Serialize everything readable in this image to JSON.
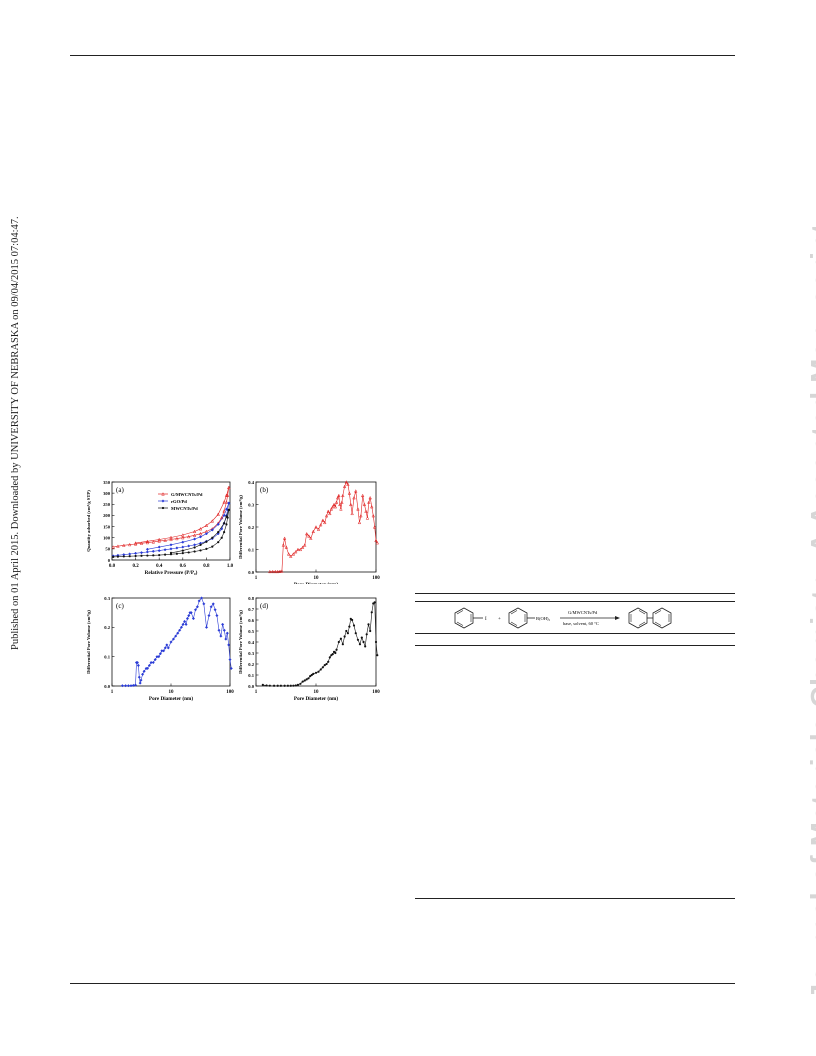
{
  "side_note": "Published on 01 April 2015. Downloaded by UNIVERSITY OF NEBRASKA on 09/04/2015 07:04:47.",
  "watermark": "Journal of Materials Chemistry A Accepted Manuscript",
  "figure": {
    "panels": [
      {
        "tag": "(a)",
        "type": "line",
        "xlabel": "Relative Pressure (P/P₀)",
        "ylabel": "Quantity adsorbed (cm³/g STP)",
        "xlim": [
          0,
          1.0
        ],
        "ylim": [
          0,
          350
        ],
        "xticks": [
          "0.0",
          "0.2",
          "0.4",
          "0.6",
          "0.8",
          "1.0"
        ],
        "yticks": [
          "0",
          "50",
          "100",
          "150",
          "200",
          "250",
          "300",
          "350"
        ],
        "legend": [
          "G/MWCNTs/Pd",
          "rGO/Pd",
          "MWCNTs/Pd"
        ],
        "colors": [
          "#e02020",
          "#2a3bd6",
          "#111111"
        ]
      },
      {
        "tag": "(b)",
        "type": "line",
        "xlabel": "Pore Diameter (nm)",
        "ylabel": "Differential Pore Volume (cm³/g)",
        "xscale": "log",
        "xlim": [
          1,
          100
        ],
        "ylim": [
          0,
          0.4
        ],
        "xticks": [
          "1",
          "10",
          "100"
        ],
        "yticks": [
          "0.0",
          "0.1",
          "0.2",
          "0.3",
          "0.4"
        ],
        "color": "#e02020"
      },
      {
        "tag": "(c)",
        "type": "line",
        "xlabel": "Pore Diameter (nm)",
        "ylabel": "Differential Pore Volume (cm³/g)",
        "xscale": "log",
        "xlim": [
          1,
          100
        ],
        "ylim": [
          0,
          0.3
        ],
        "xticks": [
          "1",
          "10",
          "100"
        ],
        "yticks": [
          "0.0",
          "0.1",
          "0.2",
          "0.3"
        ],
        "color": "#2a3bd6"
      },
      {
        "tag": "(d)",
        "type": "line",
        "xlabel": "Pore Diameter (nm)",
        "ylabel": "Differential Pore Volume (cm³/g)",
        "xscale": "log",
        "xlim": [
          1,
          100
        ],
        "ylim": [
          0,
          0.8
        ],
        "xticks": [
          "1",
          "10",
          "100"
        ],
        "yticks": [
          "0.0",
          "0.1",
          "0.2",
          "0.3",
          "0.4",
          "0.5",
          "0.6",
          "0.7",
          "0.8"
        ],
        "color": "#111111"
      }
    ]
  },
  "chart_data": [
    {
      "type": "line",
      "xlim": [
        0,
        1.0
      ],
      "ylim": [
        0,
        350
      ],
      "series": [
        {
          "name": "G/MWCNTs/Pd",
          "x": [
            0.01,
            0.05,
            0.1,
            0.15,
            0.2,
            0.25,
            0.3,
            0.35,
            0.4,
            0.45,
            0.5,
            0.55,
            0.6,
            0.65,
            0.7,
            0.75,
            0.8,
            0.85,
            0.9,
            0.93,
            0.95,
            0.97,
            0.98,
            0.99,
            0.99,
            0.97,
            0.95,
            0.9,
            0.85,
            0.8,
            0.75,
            0.7,
            0.6,
            0.5,
            0.4,
            0.3,
            0.2
          ],
          "y": [
            58,
            62,
            66,
            69,
            72,
            75,
            78,
            81,
            85,
            88,
            92,
            96,
            100,
            105,
            111,
            118,
            128,
            140,
            165,
            190,
            220,
            260,
            290,
            325,
            325,
            290,
            260,
            205,
            175,
            155,
            140,
            128,
            112,
            101,
            92,
            84,
            76
          ]
        },
        {
          "name": "rGO/Pd",
          "x": [
            0.01,
            0.05,
            0.1,
            0.15,
            0.2,
            0.25,
            0.3,
            0.35,
            0.4,
            0.45,
            0.5,
            0.55,
            0.6,
            0.65,
            0.7,
            0.75,
            0.8,
            0.85,
            0.9,
            0.93,
            0.95,
            0.97,
            0.98,
            0.99,
            0.99,
            0.97,
            0.95,
            0.9,
            0.85,
            0.8,
            0.75,
            0.7,
            0.6,
            0.5,
            0.4,
            0.3
          ],
          "y": [
            18,
            21,
            24,
            27,
            30,
            33,
            36,
            39,
            42,
            46,
            50,
            54,
            58,
            63,
            68,
            75,
            84,
            96,
            118,
            140,
            165,
            200,
            225,
            255,
            255,
            228,
            200,
            160,
            135,
            118,
            104,
            94,
            80,
            68,
            58,
            48
          ]
        },
        {
          "name": "MWCNTs/Pd",
          "x": [
            0.01,
            0.05,
            0.1,
            0.15,
            0.2,
            0.25,
            0.3,
            0.35,
            0.4,
            0.45,
            0.5,
            0.55,
            0.6,
            0.65,
            0.7,
            0.75,
            0.8,
            0.85,
            0.9,
            0.93,
            0.95,
            0.97,
            0.98,
            0.99,
            0.99,
            0.97,
            0.95,
            0.9,
            0.85,
            0.8,
            0.75,
            0.7,
            0.6,
            0.5
          ],
          "y": [
            14,
            15,
            16,
            17,
            18,
            19,
            20,
            21,
            22,
            24,
            26,
            28,
            31,
            34,
            38,
            43,
            50,
            60,
            80,
            100,
            125,
            160,
            190,
            225,
            225,
            195,
            165,
            125,
            100,
            82,
            68,
            56,
            42,
            32
          ]
        }
      ]
    },
    {
      "type": "line",
      "xscale": "log",
      "xlim": [
        1,
        100
      ],
      "ylim": [
        0,
        0.4
      ],
      "series": [
        {
          "x": [
            1.7,
            1.9,
            2.1,
            2.3,
            2.5,
            2.7,
            2.85,
            3.0,
            3.2,
            3.5,
            3.8,
            4.2,
            4.6,
            5.0,
            5.5,
            6.0,
            6.5,
            7.0,
            7.6,
            8.2,
            9.0,
            10,
            11,
            12,
            13,
            14,
            15,
            16,
            17,
            18,
            19,
            20,
            21,
            22,
            23,
            24,
            25,
            26,
            27,
            28,
            30,
            32,
            34,
            36,
            38,
            40,
            43,
            46,
            50,
            53,
            56,
            60,
            64,
            68,
            72,
            76,
            80,
            85,
            90,
            95,
            100,
            105
          ],
          "y": [
            0.002,
            0.002,
            0.002,
            0.002,
            0.003,
            0.004,
            0.12,
            0.15,
            0.11,
            0.08,
            0.07,
            0.08,
            0.09,
            0.1,
            0.1,
            0.11,
            0.12,
            0.17,
            0.16,
            0.15,
            0.18,
            0.2,
            0.19,
            0.21,
            0.23,
            0.22,
            0.25,
            0.27,
            0.26,
            0.28,
            0.29,
            0.3,
            0.29,
            0.31,
            0.33,
            0.34,
            0.3,
            0.28,
            0.31,
            0.34,
            0.38,
            0.4,
            0.39,
            0.35,
            0.3,
            0.26,
            0.33,
            0.36,
            0.28,
            0.22,
            0.25,
            0.34,
            0.3,
            0.27,
            0.24,
            0.31,
            0.33,
            0.29,
            0.25,
            0.2,
            0.14,
            0.13
          ]
        }
      ]
    },
    {
      "type": "line",
      "xscale": "log",
      "xlim": [
        1,
        100
      ],
      "ylim": [
        0,
        0.3
      ],
      "series": [
        {
          "x": [
            1.5,
            1.7,
            1.9,
            2.1,
            2.3,
            2.5,
            2.6,
            2.7,
            2.8,
            2.9,
            3.0,
            3.1,
            3.3,
            3.5,
            3.8,
            4.0,
            4.3,
            4.6,
            5.0,
            5.4,
            5.8,
            6.2,
            6.6,
            7.0,
            7.5,
            8.0,
            8.5,
            9.0,
            10,
            11,
            12,
            13,
            14,
            15,
            16,
            17,
            18,
            19,
            20,
            21,
            22,
            24,
            26,
            28,
            30,
            33,
            36,
            40,
            44,
            48,
            52,
            56,
            60,
            65,
            70,
            75,
            80,
            85,
            90,
            95,
            100,
            105
          ],
          "y": [
            0.001,
            0.001,
            0.001,
            0.001,
            0.002,
            0.003,
            0.08,
            0.08,
            0.07,
            0.03,
            0.01,
            0.02,
            0.04,
            0.05,
            0.06,
            0.06,
            0.07,
            0.08,
            0.08,
            0.09,
            0.1,
            0.1,
            0.11,
            0.12,
            0.12,
            0.13,
            0.14,
            0.13,
            0.15,
            0.16,
            0.17,
            0.18,
            0.19,
            0.2,
            0.21,
            0.22,
            0.21,
            0.23,
            0.24,
            0.25,
            0.25,
            0.23,
            0.26,
            0.27,
            0.29,
            0.3,
            0.28,
            0.2,
            0.24,
            0.27,
            0.28,
            0.26,
            0.24,
            0.19,
            0.17,
            0.21,
            0.19,
            0.16,
            0.18,
            0.14,
            0.09,
            0.06
          ]
        }
      ]
    },
    {
      "type": "line",
      "xscale": "log",
      "xlim": [
        1,
        100
      ],
      "ylim": [
        0,
        0.8
      ],
      "series": [
        {
          "x": [
            1.3,
            1.5,
            1.7,
            2.0,
            2.3,
            2.6,
            3.0,
            3.4,
            3.8,
            4.2,
            4.6,
            5.0,
            5.5,
            6.0,
            6.5,
            7.0,
            7.5,
            8.0,
            8.5,
            9.0,
            10,
            11,
            12,
            13,
            14,
            15,
            16,
            17,
            18,
            19,
            20,
            21,
            22,
            24,
            26,
            28,
            30,
            32,
            34,
            36,
            38,
            40,
            43,
            46,
            50,
            54,
            58,
            62,
            66,
            70,
            75,
            80,
            85,
            90,
            95,
            100,
            105
          ],
          "y": [
            0.01,
            0.005,
            0.003,
            0.002,
            0.002,
            0.002,
            0.002,
            0.002,
            0.002,
            0.003,
            0.005,
            0.01,
            0.02,
            0.04,
            0.05,
            0.06,
            0.07,
            0.09,
            0.1,
            0.11,
            0.12,
            0.13,
            0.15,
            0.17,
            0.19,
            0.2,
            0.22,
            0.26,
            0.28,
            0.29,
            0.31,
            0.3,
            0.33,
            0.4,
            0.43,
            0.38,
            0.45,
            0.5,
            0.48,
            0.54,
            0.61,
            0.6,
            0.55,
            0.48,
            0.42,
            0.38,
            0.44,
            0.4,
            0.36,
            0.47,
            0.56,
            0.5,
            0.67,
            0.75,
            0.76,
            0.4,
            0.28
          ]
        }
      ]
    }
  ],
  "scheme": {
    "reagent_symbol_1": "I",
    "plus": "+",
    "reagent_symbol_2": "B(OH)₂",
    "catalyst": "G/MWCNTs/Pd",
    "conditions": "base, solvent, 60 °C"
  }
}
